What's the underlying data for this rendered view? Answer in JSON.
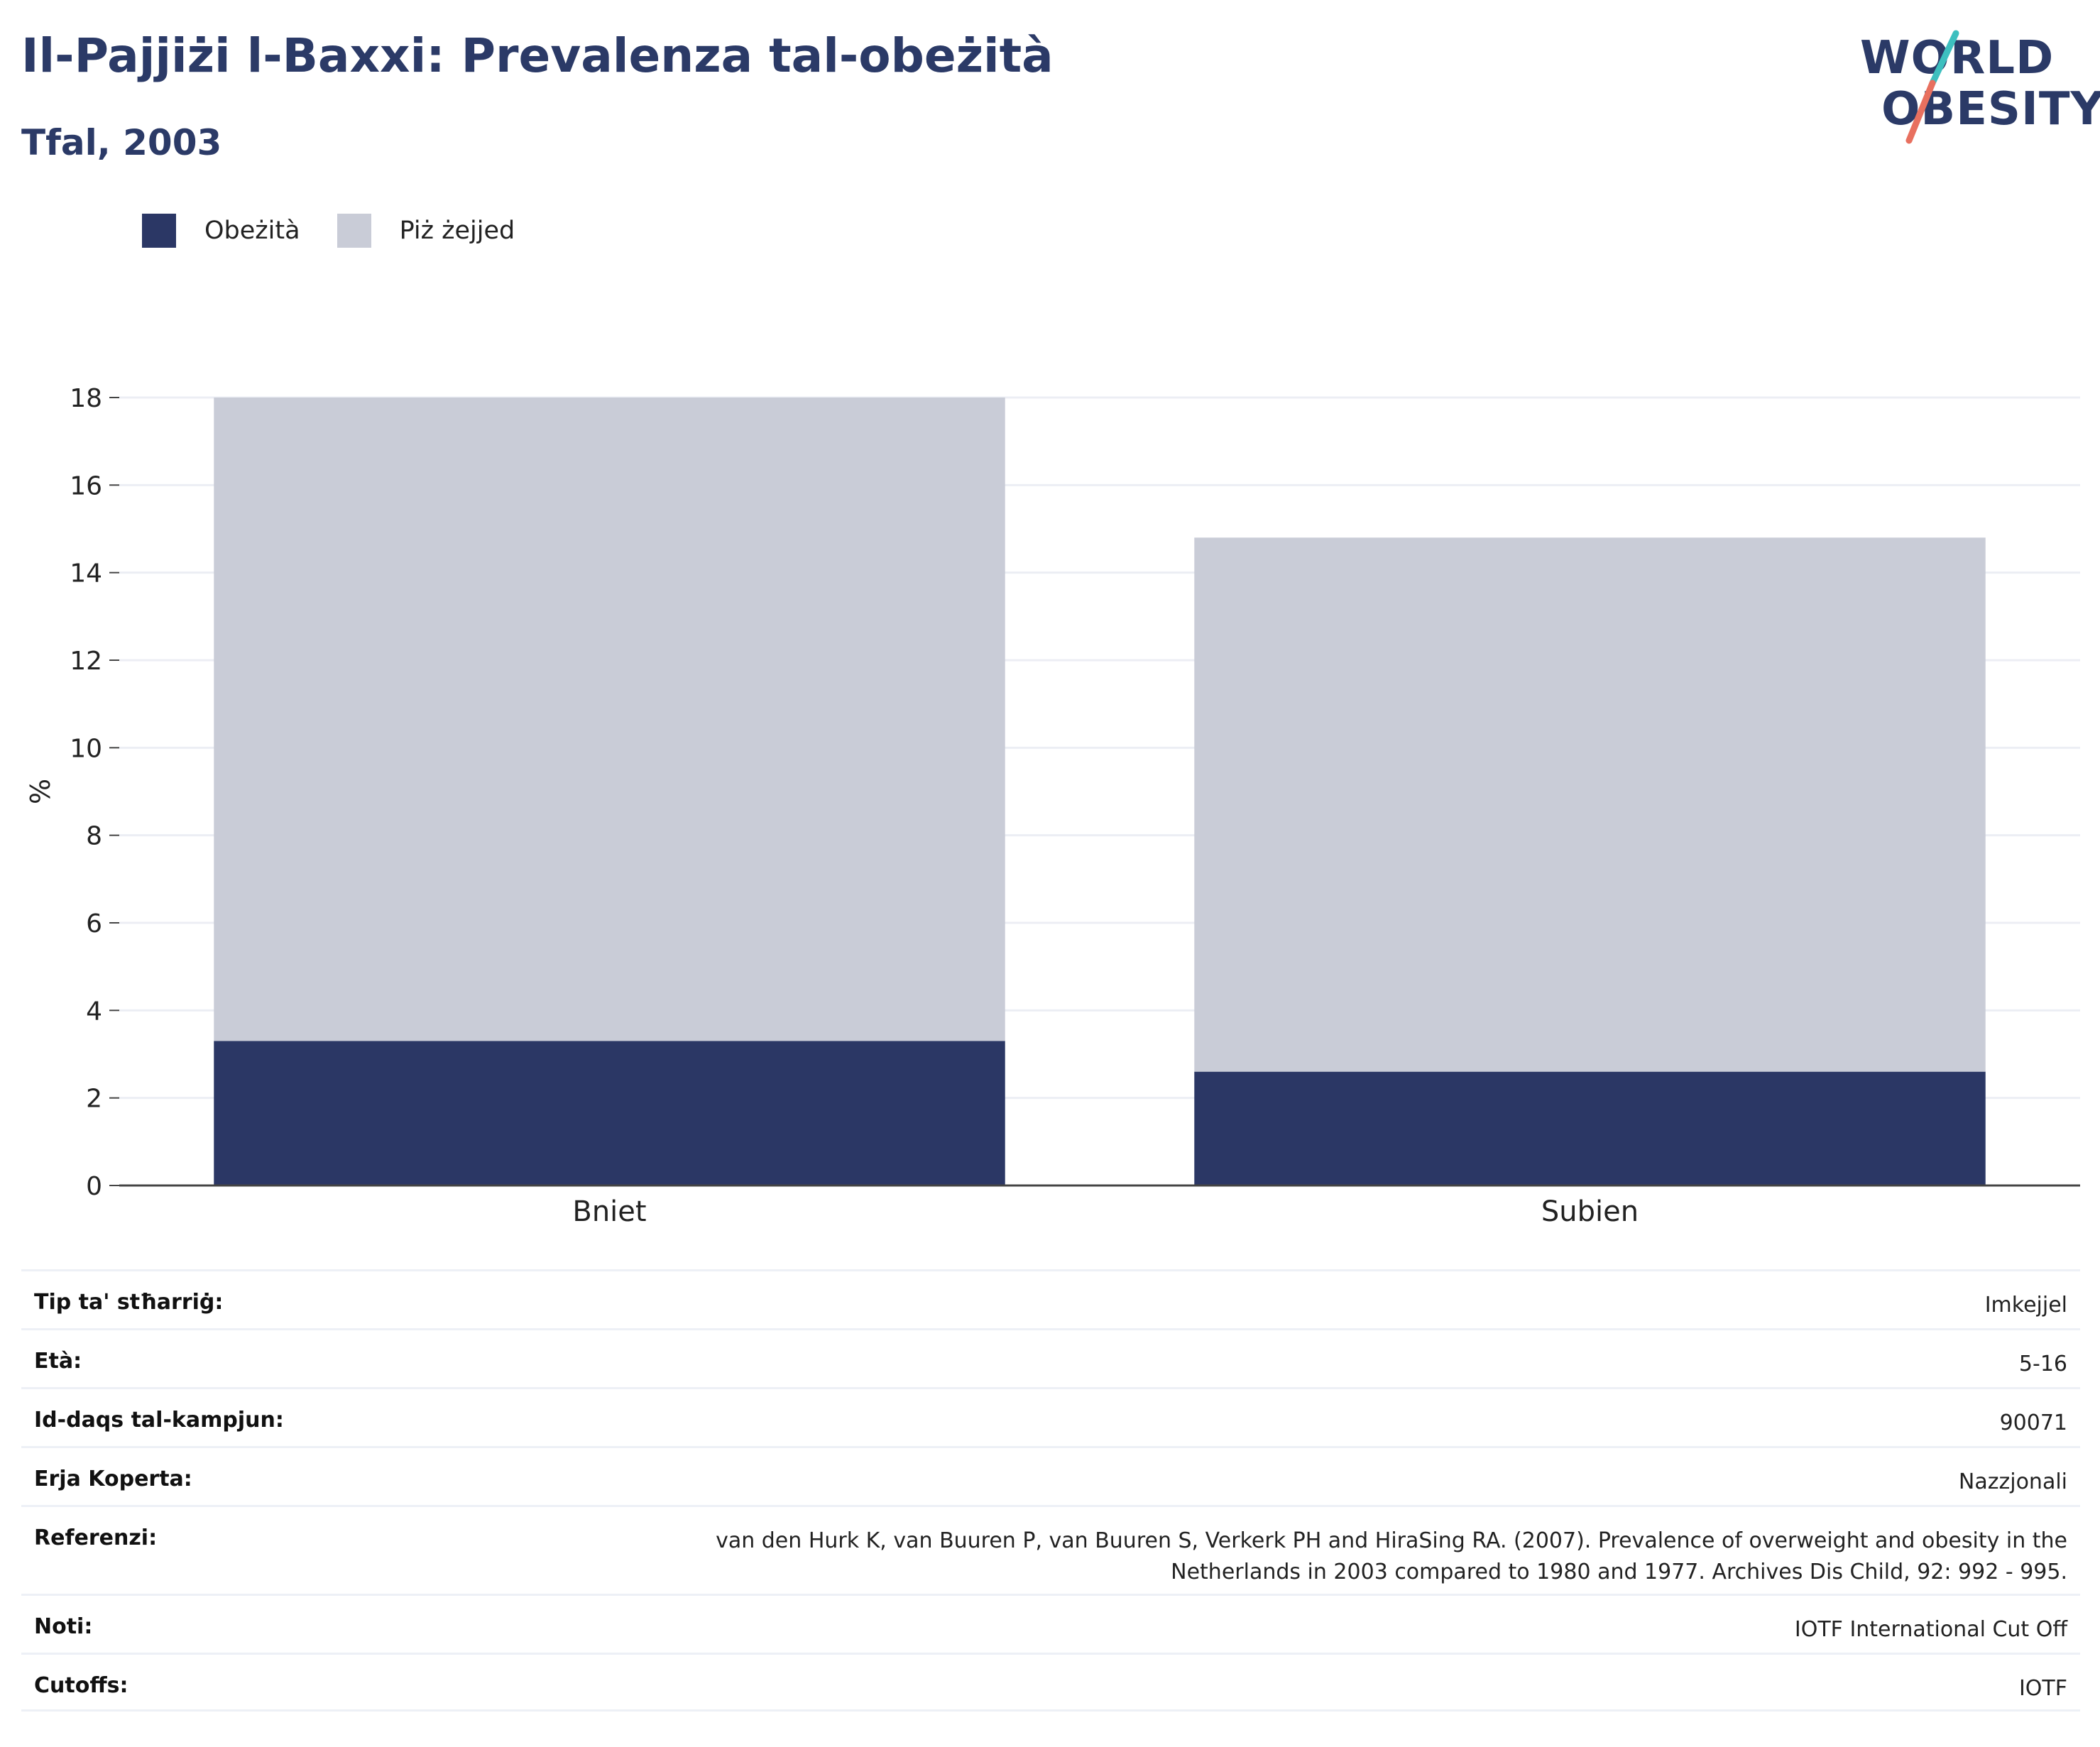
{
  "header": {
    "title": "Il-Pajjiżi l-Baxxi: Prevalenza tal-obeżità",
    "subtitle": "Tfal, 2003"
  },
  "logo": {
    "line1": "WORLD",
    "line2": "OBESITY",
    "accent_colors": [
      "#3dbfbf",
      "#e8705f"
    ]
  },
  "colors": {
    "obesity": "#2b3765",
    "overweight": "#c9ccd7",
    "title": "#2b3a67",
    "grid": "#eceef4",
    "axis": "#444444"
  },
  "chart_data": {
    "type": "bar",
    "stacked": true,
    "categories": [
      "Bniet",
      "Subien"
    ],
    "series": [
      {
        "name": "Obeżità",
        "values": [
          3.3,
          2.6
        ],
        "color": "#2b3765"
      },
      {
        "name": "Piż żejjed",
        "values": [
          14.7,
          12.2
        ],
        "color": "#c9ccd7"
      }
    ],
    "totals": [
      18.0,
      14.8
    ],
    "ylabel": "%",
    "xlabel": "",
    "ylim": [
      0,
      18
    ],
    "yticks": [
      0,
      2,
      4,
      6,
      8,
      10,
      12,
      14,
      16,
      18
    ],
    "grid": true,
    "legend_position": "top-left"
  },
  "info": [
    {
      "label": "Tip ta' stħarriġ:",
      "value": "Imkejjel"
    },
    {
      "label": "Età:",
      "value": "5-16"
    },
    {
      "label": "Id-daqs tal-kampjun:",
      "value": "90071"
    },
    {
      "label": "Erja Koperta:",
      "value": "Nazzjonali"
    },
    {
      "label": "Referenzi:",
      "value": "van den Hurk K, van Buuren P, van Buuren S, Verkerk PH and HiraSing RA. (2007). Prevalence of overweight and obesity in the Netherlands in 2003 compared to 1980 and 1977. Archives Dis Child, 92: 992 - 995."
    },
    {
      "label": "Noti:",
      "value": "IOTF International Cut Off"
    },
    {
      "label": "Cutoffs:",
      "value": "IOTF"
    }
  ]
}
